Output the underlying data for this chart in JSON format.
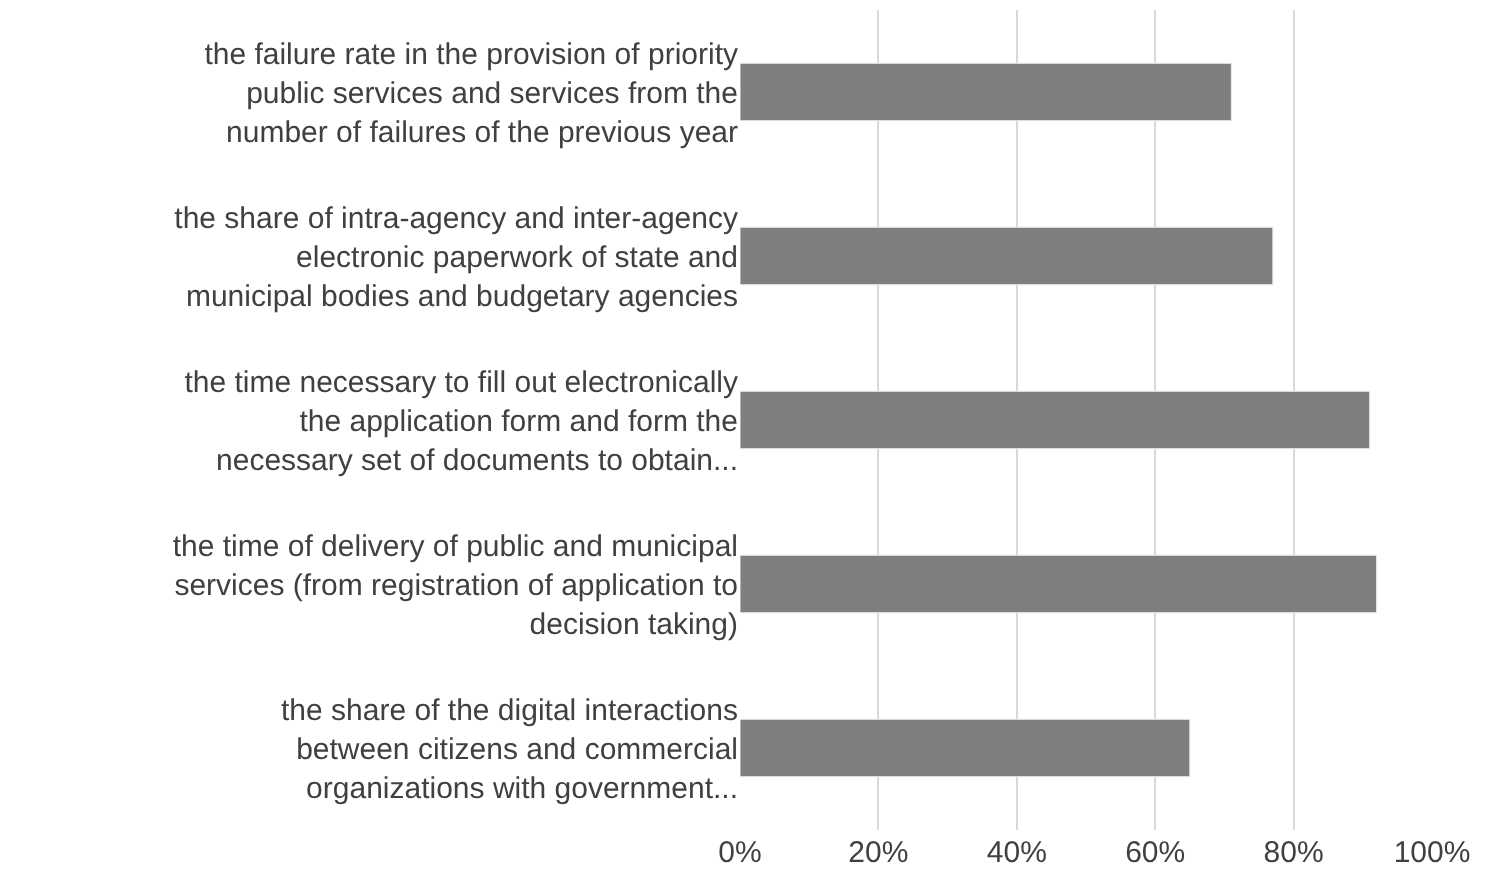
{
  "chart_data": {
    "type": "bar",
    "orientation": "horizontal",
    "categories": [
      "the failure rate in the provision of priority\npublic services and services from the\nnumber of failures of the previous year",
      "the share of intra-agency and inter-agency\nelectronic paperwork of state and\nmunicipal bodies and budgetary agencies",
      "the time necessary to fill out electronically\nthe application form and form the\nnecessary set of documents to obtain...",
      "the time of delivery of public and municipal\nservices (from registration of application to\ndecision taking)",
      "the share of the digital interactions\nbetween citizens and commercial\norganizations with government..."
    ],
    "values": [
      71,
      77,
      91,
      92,
      65
    ],
    "color": "#7f7f7f",
    "xlim": [
      0,
      100
    ],
    "xticks": [
      {
        "value": 0,
        "label": "0%"
      },
      {
        "value": 20,
        "label": "20%"
      },
      {
        "value": 40,
        "label": "40%"
      },
      {
        "value": 60,
        "label": "60%"
      },
      {
        "value": 80,
        "label": "80%"
      },
      {
        "value": 100,
        "label": "100%"
      }
    ],
    "grid": "x"
  }
}
